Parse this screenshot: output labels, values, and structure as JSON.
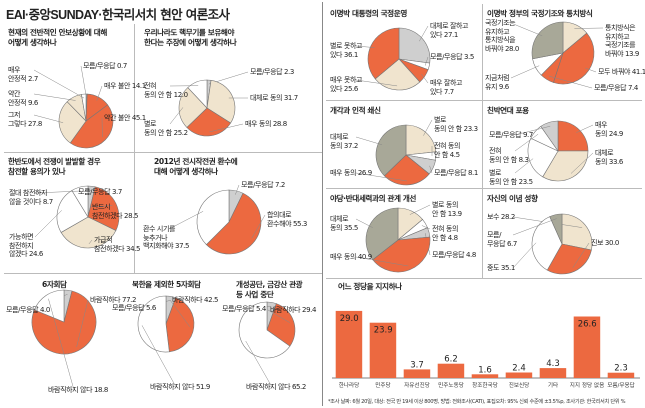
{
  "header": {
    "title_en": "EAI·중앙SUNDAY·한국리서치",
    "title_ko": " 현안 여론조사"
  },
  "footnote": "*조사 날짜: 6월 20일, 대상: 전국 만 19세 이상 800명, 방법: 전화조사(CATI), 표집오차: 95% 신뢰 수준에 ±3.5%p, 조사기관: 한국리서치  단위 %",
  "colors": {
    "orange": "#ec6940",
    "light": "#f0e4ce",
    "olive": "#a8a898",
    "gray": "#cfcfcf",
    "white": "#ffffff"
  },
  "chart_data": [
    {
      "type": "pie",
      "id": "p1",
      "title": "현재의 전반적인 안보상황에 대해\n어떻게 생각하나",
      "series": [
        {
          "label": "모름/무응답",
          "value": 0.7
        },
        {
          "label": "매우 불안",
          "value": 14.1
        },
        {
          "label": "약간 불안",
          "value": 45.1
        },
        {
          "label": "그저\n그렇다",
          "value": 27.8
        },
        {
          "label": "약간\n안정적",
          "value": 9.6
        },
        {
          "label": "매우\n안정적",
          "value": 2.7
        }
      ]
    },
    {
      "type": "pie",
      "id": "p2",
      "title": "우리나라도 핵무기를 보유해야\n한다는 주장에 어떻게 생각하나",
      "series": [
        {
          "label": "모름/무응답",
          "value": 2.3
        },
        {
          "label": "대체로 동의",
          "value": 31.7
        },
        {
          "label": "매우 동의",
          "value": 28.8
        },
        {
          "label": "별로\n동의 안 함",
          "value": 25.2
        },
        {
          "label": "전혀\n동의 안 함",
          "value": 12.0
        }
      ]
    },
    {
      "type": "pie",
      "id": "p3",
      "title": "한반도에서 전쟁이 발발할 경우\n참전할 용의가 있나",
      "series": [
        {
          "label": "모름/무응답",
          "value": 3.7
        },
        {
          "label": "반드시\n참전하겠다",
          "value": 28.5
        },
        {
          "label": "가급적\n참전하겠다",
          "value": 34.5
        },
        {
          "label": "가능하면\n참전하지\n않겠다",
          "value": 24.6
        },
        {
          "label": "절대 참전하지\n않을 것이다",
          "value": 8.7
        }
      ]
    },
    {
      "type": "pie",
      "id": "p4",
      "title": "2012년 전시작전권 환수에\n대해 어떻게 생각하나",
      "series": [
        {
          "label": "모름/무응답",
          "value": 7.2
        },
        {
          "label": "합의대로\n환수해야",
          "value": 55.3
        },
        {
          "label": "환수 시기를\n늦추거나\n백지화해야",
          "value": 37.5
        }
      ]
    },
    {
      "type": "pie",
      "id": "p5",
      "title": "6자회담",
      "series": [
        {
          "label": "모름/무응답",
          "value": 4.0
        },
        {
          "label": "바람직하다",
          "value": 77.2
        },
        {
          "label": "바람직하지 않다",
          "value": 18.8
        }
      ]
    },
    {
      "type": "pie",
      "id": "p6",
      "title": "북한을 제외한 5자회담",
      "series": [
        {
          "label": "모름/무응답",
          "value": 5.6
        },
        {
          "label": "바람직하다",
          "value": 42.5
        },
        {
          "label": "바람직하지 않다",
          "value": 51.9
        }
      ]
    },
    {
      "type": "pie",
      "id": "p7",
      "title": "개성공단, 금강산 관광\n등 사업 중단",
      "series": [
        {
          "label": "모름/무응답",
          "value": 5.4
        },
        {
          "label": "바람직하다",
          "value": 29.4
        },
        {
          "label": "바람직하지 않다",
          "value": 65.2
        }
      ]
    },
    {
      "type": "pie",
      "id": "p8",
      "title": "이명박 대통령의 국정운영",
      "series": [
        {
          "label": "대체로 잘하고\n있다",
          "value": 27.1
        },
        {
          "label": "모름/무응답",
          "value": 3.5
        },
        {
          "label": "매우 잘하고\n있다",
          "value": 7.7
        },
        {
          "label": "매우 못하고\n있다",
          "value": 25.6
        },
        {
          "label": "별로 못하고\n있다",
          "value": 36.1
        }
      ]
    },
    {
      "type": "pie",
      "id": "p9",
      "title": "이명박 정부의 국정기조와 통치방식",
      "series": [
        {
          "label": "통치방식은\n유지하고\n국정기조를\n바꿔야",
          "value": 13.9
        },
        {
          "label": "모두 바꿔야",
          "value": 41.1
        },
        {
          "label": "모름/무응답",
          "value": 7.4
        },
        {
          "label": "지금처럼\n유지",
          "value": 9.6
        },
        {
          "label": "국정기조는\n유지하고\n통치방식을\n바꿔야",
          "value": 28.0
        }
      ]
    },
    {
      "type": "pie",
      "id": "p10",
      "title": "개각과 인적 쇄신",
      "series": [
        {
          "label": "별로\n동의 안 함",
          "value": 23.3
        },
        {
          "label": "전혀 동의\n안 함",
          "value": 4.5
        },
        {
          "label": "모름/무응답",
          "value": 8.1
        },
        {
          "label": "매우 동의",
          "value": 26.9
        },
        {
          "label": "대체로\n동의",
          "value": 37.2
        }
      ]
    },
    {
      "type": "pie",
      "id": "p11",
      "title": "친박연대 포용",
      "series": [
        {
          "label": "매우\n동의",
          "value": 24.9
        },
        {
          "label": "대체로\n동의",
          "value": 33.6
        },
        {
          "label": "별로\n동의 안 함",
          "value": 23.5
        },
        {
          "label": "전혀\n동의 안 함",
          "value": 8.3
        },
        {
          "label": "모름/무응답",
          "value": 9.7
        }
      ]
    },
    {
      "type": "pie",
      "id": "p12",
      "title": "야당·반대세력과의 관계 개선",
      "series": [
        {
          "label": "별로 동의\n안 함",
          "value": 13.9
        },
        {
          "label": "전혀 동의\n안 함",
          "value": 4.8
        },
        {
          "label": "모름/무응답",
          "value": 4.8
        },
        {
          "label": "매우 동의",
          "value": 40.9
        },
        {
          "label": "대체로\n동의",
          "value": 35.5
        }
      ]
    },
    {
      "type": "pie",
      "id": "p13",
      "title": "자신의 이념 성향",
      "series": [
        {
          "label": "보수",
          "value": 28.2
        },
        {
          "label": "진보",
          "value": 30.0
        },
        {
          "label": "중도",
          "value": 35.1
        },
        {
          "label": "모름/\n무응답",
          "value": 6.7
        }
      ]
    },
    {
      "type": "bar",
      "id": "b1",
      "title": "어느 정당을 지지하나",
      "categories": [
        "한나라당",
        "민주당",
        "자유선진당",
        "민주노동당",
        "창조한국당",
        "진보신당",
        "기타",
        "지지 정당 없음",
        "모름/무응답"
      ],
      "values": [
        29.0,
        23.9,
        3.7,
        6.2,
        1.6,
        2.4,
        4.3,
        26.6,
        2.3
      ],
      "value_labels": [
        "29.0",
        "23.9",
        "3.7",
        "6.2",
        "1.6",
        "2.4",
        "4.3",
        "26.6",
        "2.3"
      ],
      "ylim": [
        0,
        32
      ]
    }
  ]
}
